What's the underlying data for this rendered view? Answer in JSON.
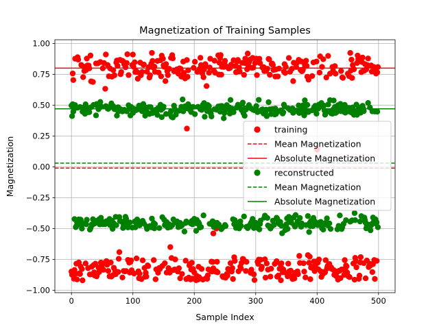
{
  "chart_data": {
    "type": "scatter",
    "title": "Magnetization of Training Samples",
    "xlabel": "Sample Index",
    "ylabel": "Magnetization",
    "xlim": [
      -27,
      527
    ],
    "ylim": [
      -1.02,
      1.03
    ],
    "x_ticks": [
      0,
      100,
      200,
      300,
      400,
      500
    ],
    "y_ticks": [
      -1.0,
      -0.75,
      -0.5,
      -0.25,
      0.0,
      0.25,
      0.5,
      0.75,
      1.0
    ],
    "x_tick_labels": [
      "0",
      "100",
      "200",
      "300",
      "400",
      "500"
    ],
    "y_tick_labels": [
      "−1.00",
      "−0.75",
      "−0.50",
      "−0.25",
      "0.00",
      "0.25",
      "0.50",
      "0.75",
      "1.00"
    ],
    "grid": true,
    "legend_position": "center-right",
    "n_samples": 500,
    "series": [
      {
        "name": "training",
        "kind": "scatter",
        "color": "#ff0000",
        "clusters": [
          {
            "center": 0.81,
            "spread": 0.055,
            "min": 0.55,
            "max": 0.93,
            "fraction": 0.5
          },
          {
            "center": -0.83,
            "spread": 0.055,
            "min": -0.92,
            "max": -0.59,
            "fraction": 0.5
          }
        ],
        "outliers": [
          {
            "x": 188,
            "y": 0.31
          },
          {
            "x": 400,
            "y": 0.14
          },
          {
            "x": 236,
            "y": -0.5
          },
          {
            "x": 231,
            "y": -0.54
          }
        ]
      },
      {
        "name": "Mean Magnetization",
        "kind": "hline",
        "style": "dashed",
        "color": "#ff0000",
        "value": -0.01
      },
      {
        "name": "Absolute Magnetization",
        "kind": "hline",
        "style": "solid",
        "color": "#ff0000",
        "value": 0.8
      },
      {
        "name": "reconstructed",
        "kind": "scatter",
        "color": "#008000",
        "clusters": [
          {
            "center": 0.47,
            "spread": 0.03,
            "min": 0.38,
            "max": 0.55,
            "fraction": 0.5
          },
          {
            "center": -0.46,
            "spread": 0.03,
            "min": -0.54,
            "max": -0.37,
            "fraction": 0.5
          }
        ],
        "outliers": []
      },
      {
        "name": "Mean Magnetization",
        "kind": "hline",
        "style": "dashed",
        "color": "#008000",
        "value": 0.03
      },
      {
        "name": "Absolute Magnetization",
        "kind": "hline",
        "style": "solid",
        "color": "#008000",
        "value": 0.47
      }
    ]
  }
}
